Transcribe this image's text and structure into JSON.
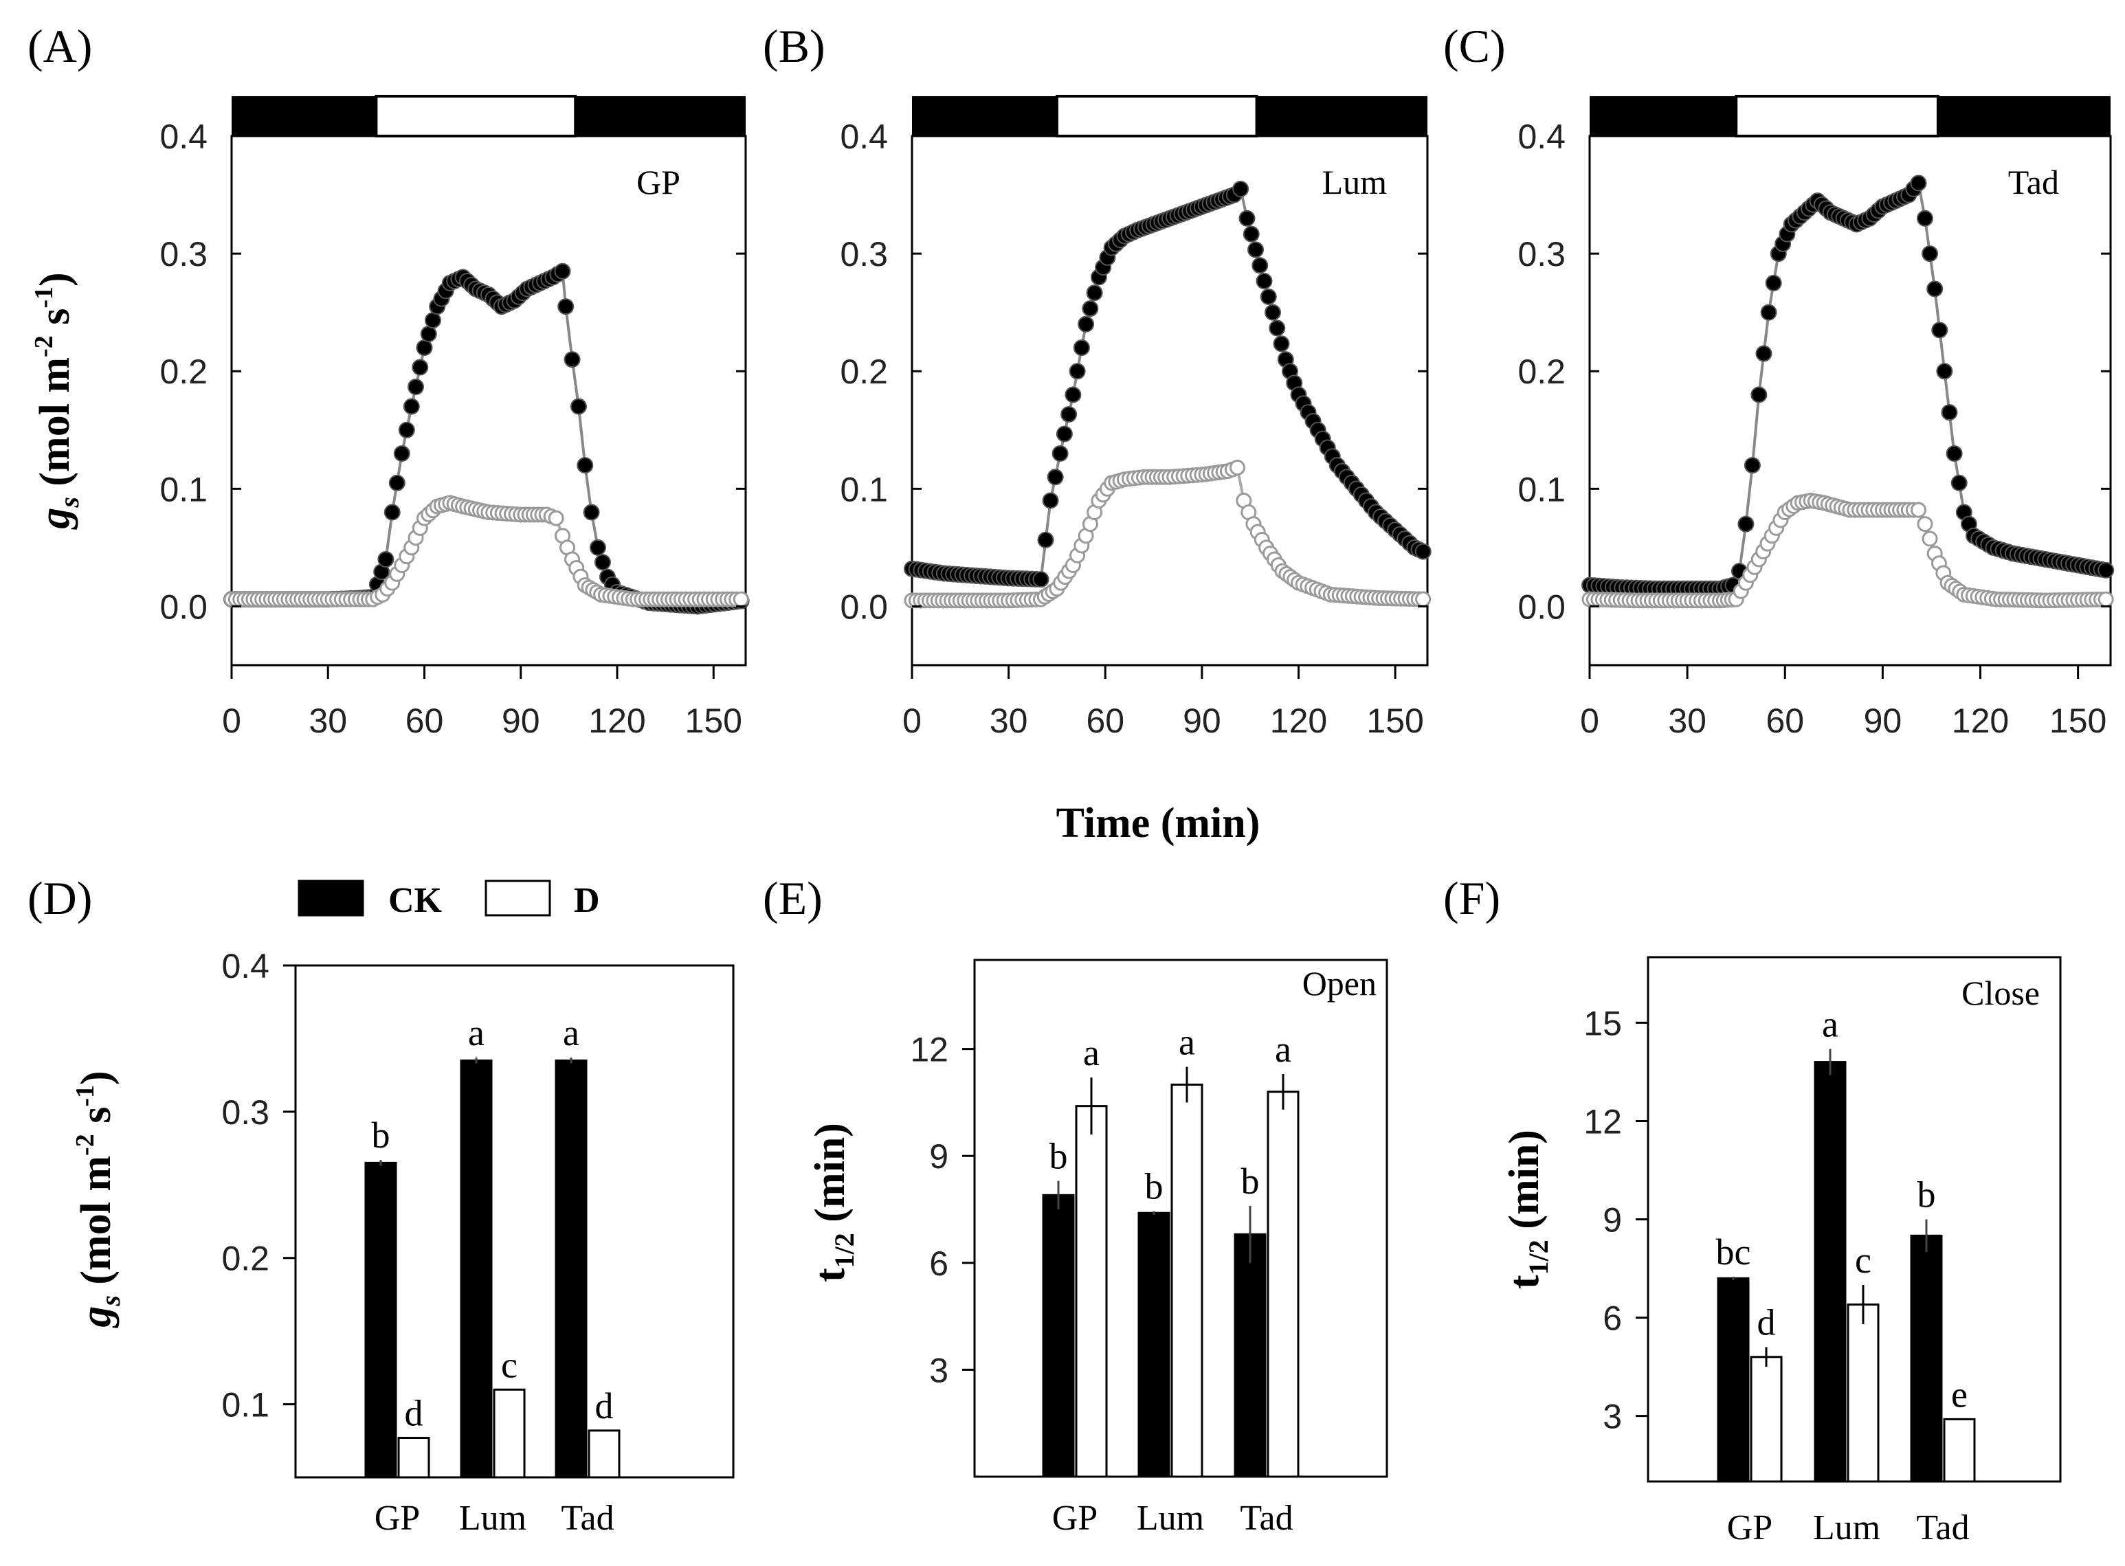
{
  "common": {
    "x_axis_title": "Time (min)",
    "gs_ylabel_main": "g",
    "gs_ylabel_sub": "s",
    "gs_ylabel_rest": " (mol m",
    "gs_ylabel_sup1": "-2",
    "gs_ylabel_mid": " s",
    "gs_ylabel_sup2": "-1",
    "gs_ylabel_end": ")",
    "t_ylabel_main": "t",
    "t_ylabel_sub": "1/2",
    "t_ylabel_end": " (min)"
  },
  "legend": {
    "items": [
      {
        "label": "CK",
        "color": "#000000"
      },
      {
        "label": "D",
        "color": "#ffffff"
      }
    ]
  },
  "chart_data": [
    {
      "panel": "(A)",
      "type": "scatter",
      "inset_label": "GP",
      "xlim": [
        0,
        160
      ],
      "ylim": [
        -0.05,
        0.4
      ],
      "xticks": [
        0,
        30,
        60,
        90,
        120,
        150
      ],
      "yticks": [
        0.0,
        0.1,
        0.2,
        0.3,
        0.4
      ],
      "light_bar": {
        "dark_until": 45,
        "light_until": 107
      },
      "series": [
        {
          "name": "CK",
          "marker": "filled",
          "color": "#000000",
          "points": [
            [
              0,
              0.006
            ],
            [
              15,
              0.006
            ],
            [
              30,
              0.006
            ],
            [
              40,
              0.007
            ],
            [
              44,
              0.008
            ],
            [
              48,
              0.04
            ],
            [
              50,
              0.08
            ],
            [
              53,
              0.13
            ],
            [
              56,
              0.17
            ],
            [
              60,
              0.22
            ],
            [
              64,
              0.255
            ],
            [
              68,
              0.275
            ],
            [
              72,
              0.28
            ],
            [
              76,
              0.27
            ],
            [
              80,
              0.265
            ],
            [
              84,
              0.255
            ],
            [
              88,
              0.26
            ],
            [
              92,
              0.27
            ],
            [
              96,
              0.275
            ],
            [
              100,
              0.28
            ],
            [
              103,
              0.285
            ],
            [
              104,
              0.255
            ],
            [
              106,
              0.21
            ],
            [
              108,
              0.17
            ],
            [
              110,
              0.12
            ],
            [
              112,
              0.08
            ],
            [
              114,
              0.05
            ],
            [
              117,
              0.025
            ],
            [
              120,
              0.012
            ],
            [
              130,
              0.003
            ],
            [
              145,
              0.0
            ],
            [
              160,
              0.005
            ]
          ]
        },
        {
          "name": "D",
          "marker": "open",
          "color": "#999999",
          "points": [
            [
              0,
              0.006
            ],
            [
              15,
              0.006
            ],
            [
              30,
              0.006
            ],
            [
              40,
              0.006
            ],
            [
              44,
              0.006
            ],
            [
              47,
              0.01
            ],
            [
              50,
              0.02
            ],
            [
              53,
              0.035
            ],
            [
              56,
              0.05
            ],
            [
              60,
              0.075
            ],
            [
              64,
              0.085
            ],
            [
              68,
              0.088
            ],
            [
              72,
              0.085
            ],
            [
              80,
              0.08
            ],
            [
              90,
              0.078
            ],
            [
              98,
              0.078
            ],
            [
              101,
              0.075
            ],
            [
              103,
              0.06
            ],
            [
              106,
              0.04
            ],
            [
              110,
              0.018
            ],
            [
              115,
              0.01
            ],
            [
              125,
              0.006
            ],
            [
              140,
              0.006
            ],
            [
              160,
              0.006
            ]
          ]
        }
      ]
    },
    {
      "panel": "(B)",
      "type": "scatter",
      "inset_label": "Lum",
      "xlim": [
        0,
        160
      ],
      "ylim": [
        -0.05,
        0.4
      ],
      "xticks": [
        0,
        30,
        60,
        90,
        120,
        150
      ],
      "yticks": [
        0.0,
        0.1,
        0.2,
        0.3,
        0.4
      ],
      "light_bar": {
        "dark_until": 45,
        "light_until": 107
      },
      "series": [
        {
          "name": "CK",
          "marker": "filled",
          "color": "#000000",
          "points": [
            [
              0,
              0.032
            ],
            [
              10,
              0.028
            ],
            [
              20,
              0.026
            ],
            [
              30,
              0.024
            ],
            [
              40,
              0.023
            ],
            [
              43,
              0.09
            ],
            [
              46,
              0.13
            ],
            [
              50,
              0.18
            ],
            [
              54,
              0.24
            ],
            [
              58,
              0.28
            ],
            [
              62,
              0.305
            ],
            [
              66,
              0.315
            ],
            [
              70,
              0.32
            ],
            [
              75,
              0.325
            ],
            [
              80,
              0.33
            ],
            [
              85,
              0.335
            ],
            [
              90,
              0.34
            ],
            [
              95,
              0.345
            ],
            [
              100,
              0.35
            ],
            [
              102,
              0.355
            ],
            [
              104,
              0.33
            ],
            [
              108,
              0.29
            ],
            [
              112,
              0.25
            ],
            [
              116,
              0.21
            ],
            [
              120,
              0.18
            ],
            [
              126,
              0.15
            ],
            [
              132,
              0.12
            ],
            [
              138,
              0.1
            ],
            [
              144,
              0.08
            ],
            [
              150,
              0.065
            ],
            [
              156,
              0.05
            ],
            [
              160,
              0.045
            ]
          ]
        },
        {
          "name": "D",
          "marker": "open",
          "color": "#999999",
          "points": [
            [
              0,
              0.005
            ],
            [
              15,
              0.005
            ],
            [
              30,
              0.005
            ],
            [
              40,
              0.006
            ],
            [
              45,
              0.015
            ],
            [
              50,
              0.035
            ],
            [
              54,
              0.06
            ],
            [
              58,
              0.09
            ],
            [
              62,
              0.105
            ],
            [
              66,
              0.108
            ],
            [
              72,
              0.11
            ],
            [
              80,
              0.11
            ],
            [
              90,
              0.112
            ],
            [
              98,
              0.115
            ],
            [
              101,
              0.118
            ],
            [
              103,
              0.09
            ],
            [
              106,
              0.07
            ],
            [
              110,
              0.05
            ],
            [
              115,
              0.03
            ],
            [
              120,
              0.02
            ],
            [
              130,
              0.01
            ],
            [
              145,
              0.007
            ],
            [
              160,
              0.006
            ]
          ]
        }
      ]
    },
    {
      "panel": "(C)",
      "type": "scatter",
      "inset_label": "Tad",
      "xlim": [
        0,
        160
      ],
      "ylim": [
        -0.05,
        0.4
      ],
      "xticks": [
        0,
        30,
        60,
        90,
        120,
        150
      ],
      "yticks": [
        0.0,
        0.1,
        0.2,
        0.3,
        0.4
      ],
      "light_bar": {
        "dark_until": 45,
        "light_until": 107
      },
      "series": [
        {
          "name": "CK",
          "marker": "filled",
          "color": "#000000",
          "points": [
            [
              0,
              0.018
            ],
            [
              10,
              0.016
            ],
            [
              20,
              0.015
            ],
            [
              30,
              0.015
            ],
            [
              40,
              0.015
            ],
            [
              44,
              0.018
            ],
            [
              46,
              0.03
            ],
            [
              48,
              0.07
            ],
            [
              50,
              0.12
            ],
            [
              52,
              0.18
            ],
            [
              55,
              0.25
            ],
            [
              58,
              0.3
            ],
            [
              62,
              0.325
            ],
            [
              66,
              0.335
            ],
            [
              70,
              0.345
            ],
            [
              74,
              0.335
            ],
            [
              78,
              0.33
            ],
            [
              82,
              0.325
            ],
            [
              86,
              0.33
            ],
            [
              90,
              0.34
            ],
            [
              94,
              0.345
            ],
            [
              98,
              0.35
            ],
            [
              101,
              0.36
            ],
            [
              103,
              0.33
            ],
            [
              106,
              0.27
            ],
            [
              109,
              0.2
            ],
            [
              112,
              0.13
            ],
            [
              115,
              0.08
            ],
            [
              118,
              0.06
            ],
            [
              124,
              0.05
            ],
            [
              130,
              0.045
            ],
            [
              140,
              0.04
            ],
            [
              150,
              0.035
            ],
            [
              160,
              0.03
            ]
          ]
        },
        {
          "name": "D",
          "marker": "open",
          "color": "#999999",
          "points": [
            [
              0,
              0.006
            ],
            [
              15,
              0.005
            ],
            [
              30,
              0.005
            ],
            [
              40,
              0.005
            ],
            [
              45,
              0.006
            ],
            [
              48,
              0.02
            ],
            [
              52,
              0.04
            ],
            [
              56,
              0.06
            ],
            [
              60,
              0.08
            ],
            [
              64,
              0.088
            ],
            [
              68,
              0.09
            ],
            [
              72,
              0.088
            ],
            [
              80,
              0.082
            ],
            [
              90,
              0.082
            ],
            [
              98,
              0.082
            ],
            [
              101,
              0.082
            ],
            [
              103,
              0.07
            ],
            [
              106,
              0.045
            ],
            [
              110,
              0.02
            ],
            [
              115,
              0.01
            ],
            [
              125,
              0.006
            ],
            [
              140,
              0.005
            ],
            [
              160,
              0.006
            ]
          ]
        }
      ]
    },
    {
      "panel": "(D)",
      "type": "bar",
      "inset_label": "",
      "categories": [
        "GP",
        "Lum",
        "Tad"
      ],
      "ylim": [
        0.05,
        0.4
      ],
      "yticks": [
        0.1,
        0.2,
        0.3,
        0.4
      ],
      "series": [
        {
          "name": "CK",
          "values": [
            0.265,
            0.335,
            0.335
          ],
          "errors": [
            0.002,
            0.002,
            0.002
          ],
          "letters": [
            "b",
            "a",
            "a"
          ]
        },
        {
          "name": "D",
          "values": [
            0.077,
            0.11,
            0.082
          ],
          "errors": [
            0.0,
            0.0,
            0.0
          ],
          "letters": [
            "d",
            "c",
            "d"
          ]
        }
      ]
    },
    {
      "panel": "(E)",
      "type": "bar",
      "inset_label": "Open",
      "categories": [
        "GP",
        "Lum",
        "Tad"
      ],
      "ylim": [
        0,
        14.5
      ],
      "yticks": [
        3,
        6,
        9,
        12
      ],
      "series": [
        {
          "name": "CK",
          "values": [
            7.9,
            7.4,
            6.8
          ],
          "errors": [
            0.4,
            0.05,
            0.8
          ],
          "letters": [
            "b",
            "b",
            "b"
          ]
        },
        {
          "name": "D",
          "values": [
            10.4,
            11.0,
            10.8
          ],
          "errors": [
            0.8,
            0.5,
            0.5
          ],
          "letters": [
            "a",
            "a",
            "a"
          ]
        }
      ]
    },
    {
      "panel": "(F)",
      "type": "bar",
      "inset_label": "Close",
      "categories": [
        "GP",
        "Lum",
        "Tad"
      ],
      "ylim": [
        1,
        17
      ],
      "yticks": [
        3,
        6,
        9,
        12,
        15
      ],
      "series": [
        {
          "name": "CK",
          "values": [
            7.2,
            13.8,
            8.5
          ],
          "errors": [
            0.05,
            0.4,
            0.5
          ],
          "letters": [
            "bc",
            "a",
            "b"
          ]
        },
        {
          "name": "D",
          "values": [
            4.8,
            6.4,
            2.9
          ],
          "errors": [
            0.3,
            0.6,
            0.0
          ],
          "letters": [
            "d",
            "c",
            "e"
          ]
        }
      ]
    }
  ]
}
